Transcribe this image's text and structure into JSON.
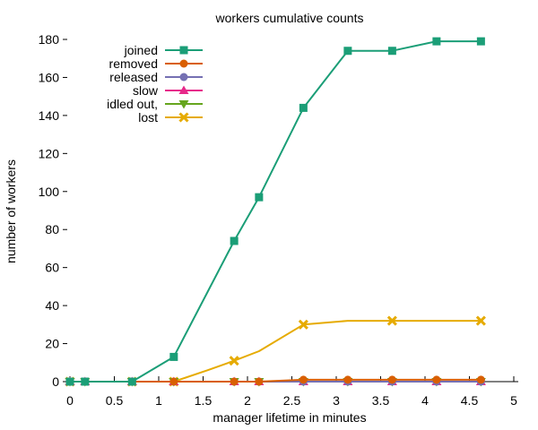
{
  "chart_data": {
    "type": "line",
    "title": "workers cumulative counts",
    "xlabel": "manager lifetime in minutes",
    "ylabel": "number of workers",
    "xlim": [
      0,
      5
    ],
    "ylim": [
      0,
      180
    ],
    "xticks": [
      "0",
      "0.5",
      "1",
      "1.5",
      "2",
      "2.5",
      "3",
      "3.5",
      "4",
      "4.5",
      "5"
    ],
    "yticks": [
      "0",
      "20",
      "40",
      "60",
      "80",
      "100",
      "120",
      "140",
      "160",
      "180"
    ],
    "grid": false,
    "legend_position": "top-left",
    "series": [
      {
        "name": "joined",
        "color": "#1b9e77",
        "marker": "square",
        "x": [
          0,
          0.17,
          0.7,
          1.17,
          1.85,
          2.13,
          2.63,
          3.13,
          3.63,
          4.13,
          4.63
        ],
        "y": [
          0,
          0,
          0,
          13,
          74,
          97,
          144,
          174,
          174,
          179,
          179
        ],
        "marker_x": [
          0,
          0.17,
          0.7,
          1.17,
          1.85,
          2.13,
          2.63,
          3.13,
          3.63,
          4.13,
          4.63
        ]
      },
      {
        "name": "removed",
        "color": "#d95f02",
        "marker": "circle",
        "x": [
          0,
          0.17,
          0.7,
          1.17,
          1.85,
          2.13,
          2.63,
          3.13,
          3.63,
          4.13,
          4.63
        ],
        "y": [
          0,
          0,
          0,
          0,
          0,
          0,
          1,
          1,
          1,
          1,
          1
        ],
        "marker_x": [
          0,
          0.17,
          0.7,
          1.17,
          1.85,
          2.13,
          2.63,
          3.13,
          3.63,
          4.13,
          4.63
        ]
      },
      {
        "name": "released",
        "color": "#7570b3",
        "marker": "circle",
        "x": [
          0,
          0.17,
          0.7,
          1.17,
          1.85,
          2.13,
          2.63,
          3.13,
          3.63,
          4.13,
          4.63
        ],
        "y": [
          0,
          0,
          0,
          0,
          0,
          0,
          0,
          0,
          0,
          0,
          0
        ],
        "marker_x": [
          0,
          0.17,
          0.7,
          1.17,
          1.85,
          2.13,
          2.63,
          3.13,
          3.63,
          4.13,
          4.63
        ]
      },
      {
        "name": "slow",
        "color": "#e7298a",
        "marker": "triangle-up",
        "x": [
          0,
          0.17,
          0.7,
          1.17,
          1.85,
          2.13,
          2.63,
          3.13,
          3.63,
          4.13,
          4.63
        ],
        "y": [
          0,
          0,
          0,
          0,
          0,
          0,
          0,
          0,
          0,
          0,
          0
        ],
        "marker_x": [
          0,
          0.17,
          0.7,
          1.17,
          1.85,
          2.13,
          2.63,
          3.13,
          3.63,
          4.13,
          4.63
        ]
      },
      {
        "name": "idled out,",
        "color": "#66a61e",
        "marker": "triangle-down",
        "x": [
          0,
          0.17,
          0.7,
          1.17,
          1.85,
          2.13,
          2.63,
          3.13,
          3.63,
          4.13,
          4.63
        ],
        "y": [
          0,
          0,
          0,
          0,
          0,
          0,
          0,
          0,
          0,
          0,
          0
        ],
        "marker_x": [
          0,
          0.17,
          0.7,
          1.17,
          1.85,
          2.13,
          2.63,
          3.13,
          3.63,
          4.13,
          4.63
        ]
      },
      {
        "name": "lost",
        "color": "#e6ab02",
        "marker": "x",
        "x": [
          0,
          0.7,
          1.17,
          1.55,
          1.85,
          2.13,
          2.63,
          3.13,
          3.63,
          4.13,
          4.63
        ],
        "y": [
          0,
          0,
          0,
          6,
          11,
          16,
          30,
          32,
          32,
          32,
          32
        ],
        "marker_x": [
          0,
          0.7,
          1.17,
          1.85,
          2.63,
          3.63,
          4.63
        ]
      }
    ]
  }
}
